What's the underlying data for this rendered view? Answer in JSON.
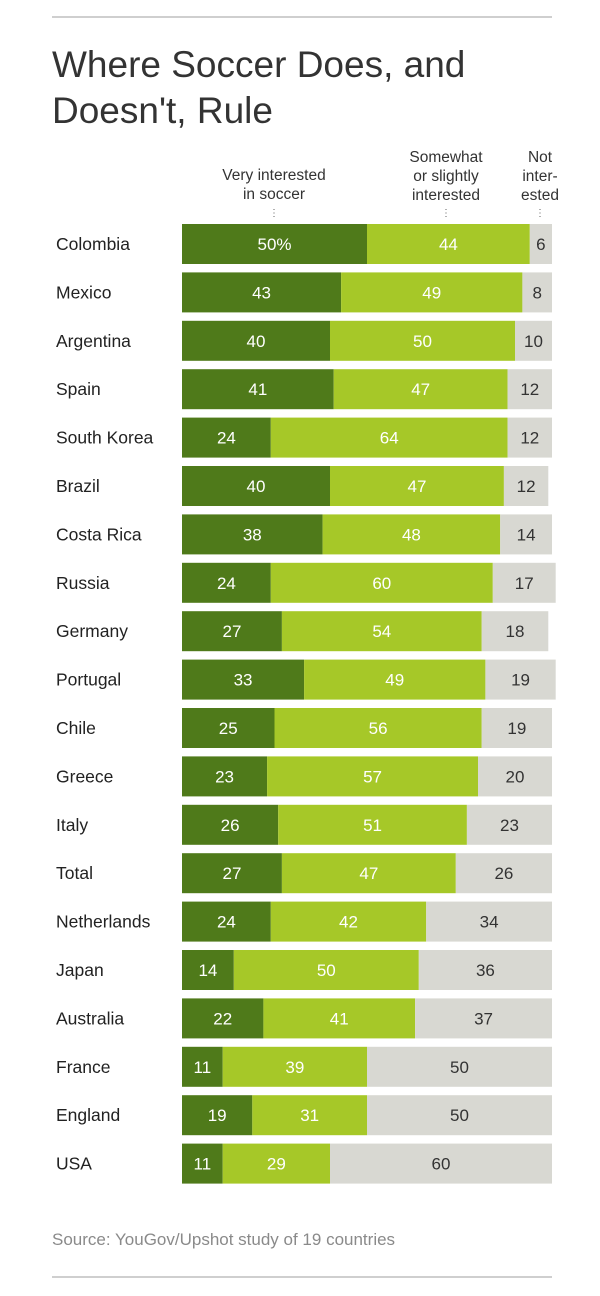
{
  "title": "Where Soccer Does, and Doesn't, Rule",
  "source": "Source: YouGov/Upshot study of 19 countries",
  "colors": {
    "very": "#4f7a1a",
    "somewhat": "#a6c828",
    "not": "#d8d8d2",
    "text_on_dark": "#ffffff",
    "text_on_light": "#333333"
  },
  "chart_data": {
    "type": "bar",
    "stacked": true,
    "orientation": "horizontal",
    "title": "Where Soccer Does, and Doesn't, Rule",
    "series_labels": [
      "Very interested\nin soccer",
      "Somewhat\nor slightly\ninterested",
      "Not\ninter-\nested"
    ],
    "first_value_suffix": "%",
    "xlim": [
      0,
      100
    ],
    "categories": [
      "Colombia",
      "Mexico",
      "Argentina",
      "Spain",
      "South Korea",
      "Brazil",
      "Costa Rica",
      "Russia",
      "Germany",
      "Portugal",
      "Chile",
      "Greece",
      "Italy",
      "Total",
      "Netherlands",
      "Japan",
      "Australia",
      "France",
      "England",
      "USA"
    ],
    "series": [
      {
        "name": "Very interested in soccer",
        "values": [
          50,
          43,
          40,
          41,
          24,
          40,
          38,
          24,
          27,
          33,
          25,
          23,
          26,
          27,
          24,
          14,
          22,
          11,
          19,
          11
        ]
      },
      {
        "name": "Somewhat or slightly interested",
        "values": [
          44,
          49,
          50,
          47,
          64,
          47,
          48,
          60,
          54,
          49,
          56,
          57,
          51,
          47,
          42,
          50,
          41,
          39,
          31,
          29
        ]
      },
      {
        "name": "Not interested",
        "values": [
          6,
          8,
          10,
          12,
          12,
          12,
          14,
          17,
          18,
          19,
          19,
          20,
          23,
          26,
          34,
          36,
          37,
          50,
          50,
          60
        ]
      }
    ]
  }
}
